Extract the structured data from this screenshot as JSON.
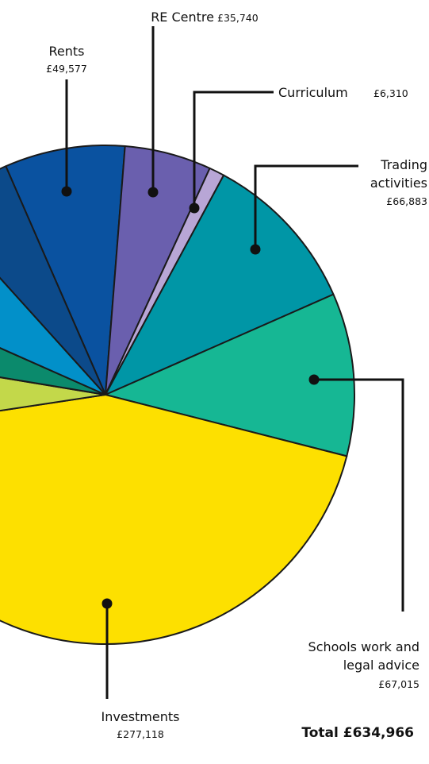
{
  "chart_data": {
    "type": "pie",
    "categories": [
      "Rents",
      "RE Centre",
      "Curriculum",
      "Trading activities",
      "Schools work and legal advice",
      "Investments",
      null,
      null,
      null,
      null
    ],
    "values": [
      49577,
      35740,
      6310,
      66883,
      67015,
      277118,
      31723,
      25600,
      42300,
      32700
    ],
    "value_labels": [
      "£49,577",
      "£35,740",
      "£6,310",
      "£66,883",
      "£67,015",
      "£277,118",
      null,
      null,
      null,
      null
    ],
    "colors": [
      "#0a52a0",
      "#6a5fae",
      "#b8a6d6",
      "#0096a6",
      "#16b794",
      "#fde000",
      "#c3d84a",
      "#0b8a6c",
      "#0290c9",
      "#0c4a8a"
    ],
    "total_text": "Total £634,966"
  }
}
